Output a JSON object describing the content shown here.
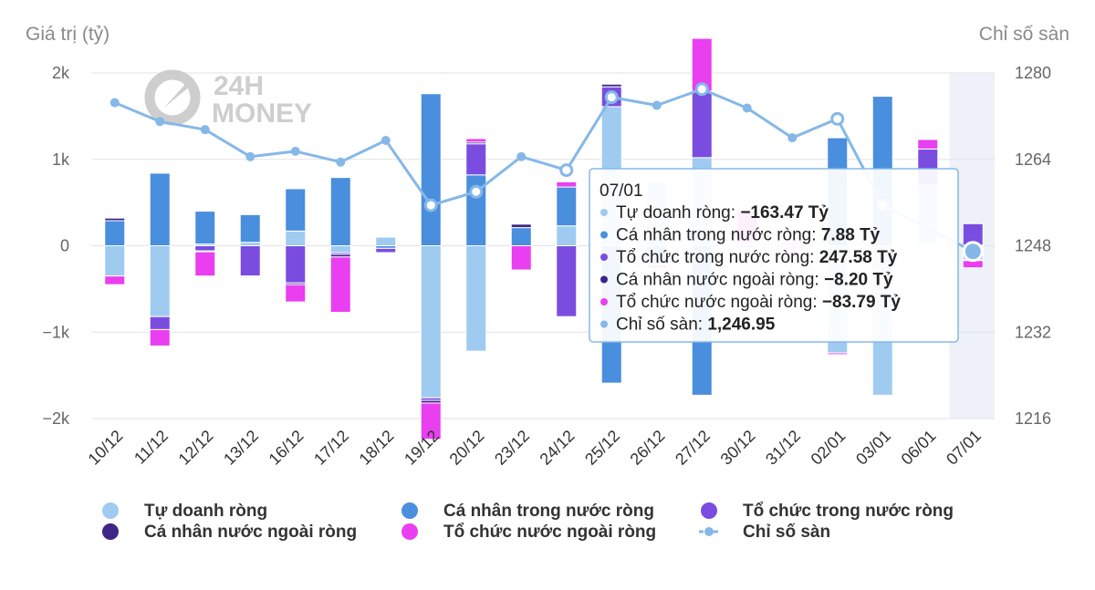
{
  "chart_data": {
    "type": "bar",
    "left_axis_title": "Giá trị (tỷ)",
    "right_axis_title": "Chỉ số sàn",
    "left_ticks": [
      {
        "value": 2000,
        "label": "2k"
      },
      {
        "value": 1000,
        "label": "1k"
      },
      {
        "value": 0,
        "label": "0"
      },
      {
        "value": -1000,
        "label": "−1k"
      },
      {
        "value": -2000,
        "label": "−2k"
      }
    ],
    "right_ticks": [
      1280,
      1264,
      1248,
      1232,
      1216
    ],
    "ylim": [
      -2000,
      2000
    ],
    "y2lim": [
      1216,
      1280
    ],
    "grid": true,
    "stacked": true,
    "categories": [
      "10/12",
      "11/12",
      "12/12",
      "13/12",
      "16/12",
      "17/12",
      "18/12",
      "19/12",
      "20/12",
      "23/12",
      "24/12",
      "25/12",
      "26/12",
      "27/12",
      "30/12",
      "31/12",
      "02/01",
      "03/01",
      "06/01",
      "07/01"
    ],
    "series": [
      {
        "name": "Tự doanh ròng",
        "color": "#9fcbf0",
        "kind": "bar",
        "values": [
          -350,
          -820,
          20,
          40,
          170,
          -80,
          100,
          -1760,
          -1220,
          0,
          230,
          1610,
          740,
          1020,
          20,
          10,
          -1240,
          -1730,
          700,
          -163.47
        ]
      },
      {
        "name": "Cá nhân trong nước ròng",
        "color": "#4a8ede",
        "kind": "bar",
        "values": [
          290,
          840,
          380,
          320,
          490,
          790,
          -30,
          1760,
          820,
          210,
          450,
          -1590,
          -220,
          -1730,
          10,
          -10,
          1250,
          1730,
          -10,
          7.88
        ]
      },
      {
        "name": "Tổ chức trong nước ròng",
        "color": "#7a4de0",
        "kind": "bar",
        "values": [
          0,
          -150,
          -60,
          -350,
          -430,
          -20,
          -50,
          -30,
          360,
          0,
          -820,
          230,
          0,
          770,
          -20,
          20,
          0,
          0,
          420,
          247.58
        ]
      },
      {
        "name": "Cá nhân nước ngoài ròng",
        "color": "#3f2587",
        "kind": "bar",
        "values": [
          30,
          0,
          -10,
          -10,
          -20,
          -30,
          -10,
          -30,
          20,
          40,
          0,
          30,
          0,
          0,
          10,
          0,
          0,
          0,
          0,
          -8.2
        ]
      },
      {
        "name": "Tổ chức nước ngoài ròng",
        "color": "#e93ff0",
        "kind": "bar",
        "values": [
          -100,
          -190,
          -280,
          -10,
          -200,
          -640,
          -10,
          -420,
          40,
          -280,
          60,
          0,
          -40,
          610,
          380,
          -20,
          -20,
          0,
          110,
          -83.79
        ]
      },
      {
        "name": "Chỉ số sàn",
        "color": "#85b8e8",
        "kind": "line",
        "values": [
          1274.5,
          1271.0,
          1269.5,
          1264.5,
          1265.5,
          1263.5,
          1267.5,
          1255.5,
          1258.0,
          1264.5,
          1262.0,
          1275.5,
          1274.0,
          1277.0,
          1273.5,
          1268.0,
          1271.5,
          1255.5,
          null,
          1246.95
        ]
      }
    ],
    "legend_position": "bottom",
    "legend": [
      {
        "label": "Tự doanh ròng",
        "color": "#9fcbf0",
        "marker": "circle"
      },
      {
        "label": "Cá nhân trong nước ròng",
        "color": "#4a8ede",
        "marker": "circle"
      },
      {
        "label": "Tổ chức trong nước ròng",
        "color": "#7a4de0",
        "marker": "circle"
      },
      {
        "label": "Cá nhân nước ngoài ròng",
        "color": "#3f2587",
        "marker": "circle"
      },
      {
        "label": "Tổ chức nước ngoài ròng",
        "color": "#e93ff0",
        "marker": "circle"
      },
      {
        "label": "Chỉ số sàn",
        "color": "#85b8e8",
        "marker": "line"
      }
    ],
    "highlighted_category": "07/01",
    "tooltip": {
      "date": "07/01",
      "rows": [
        {
          "label": "Tự doanh ròng: ",
          "value": "−163.47 Tỷ",
          "color": "#9fcbf0"
        },
        {
          "label": "Cá nhân trong nước ròng: ",
          "value": "7.88 Tỷ",
          "color": "#4a8ede"
        },
        {
          "label": "Tổ chức trong nước ròng: ",
          "value": "247.58 Tỷ",
          "color": "#7a4de0"
        },
        {
          "label": "Cá nhân nước ngoài ròng: ",
          "value": "−8.20 Tỷ",
          "color": "#3f2587"
        },
        {
          "label": "Tổ chức nước ngoài ròng: ",
          "value": "−83.79 Tỷ",
          "color": "#e93ff0"
        },
        {
          "label": "Chỉ số sàn: ",
          "value": "1,246.95",
          "color": "#85b8e8"
        }
      ]
    },
    "watermark": {
      "line1": "24H",
      "line2": "MONEY"
    }
  }
}
